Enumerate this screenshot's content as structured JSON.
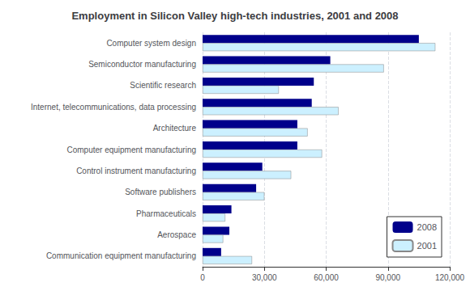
{
  "chart_data": {
    "type": "bar",
    "orientation": "horizontal",
    "title": "Employment in Silicon Valley high-tech industries, 2001 and 2008",
    "categories": [
      "Computer system design",
      "Semiconductor manufacturing",
      "Scientific research",
      "Internet, telecommunications, data processing",
      "Architecture",
      "Computer equipment manufacturing",
      "Control instrument manufacturing",
      "Software publishers",
      "Pharmaceuticals",
      "Aerospace",
      "Communication equipment manufacturing"
    ],
    "series": [
      {
        "name": "2008",
        "color": "#00008B",
        "values": [
          105000,
          62000,
          54000,
          53000,
          46000,
          46000,
          29000,
          26000,
          14000,
          13000,
          9000
        ]
      },
      {
        "name": "2001",
        "color": "#CCF0FF",
        "values": [
          113000,
          88000,
          37000,
          66000,
          51000,
          58000,
          43000,
          30000,
          11000,
          10000,
          24000
        ]
      }
    ],
    "xlim": [
      0,
      120000
    ],
    "xticks": [
      0,
      {
        "value": 30000,
        "label": "30,000"
      },
      {
        "value": 60000,
        "label": "60,000"
      },
      {
        "value": 90000,
        "label": "90,000"
      },
      {
        "value": 120000,
        "label": "120,000"
      }
    ],
    "grid": true,
    "legend": "lower right"
  }
}
